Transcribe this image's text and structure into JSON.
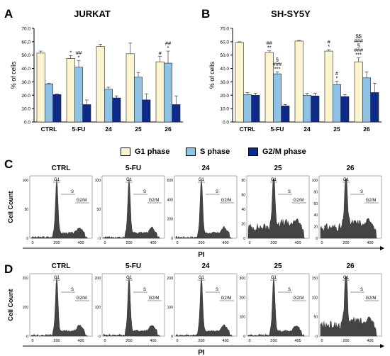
{
  "panels": {
    "A": {
      "letter": "A"
    },
    "B": {
      "letter": "B"
    },
    "C": {
      "letter": "C"
    },
    "D": {
      "letter": "D"
    }
  },
  "legend": {
    "items": [
      {
        "label": "G1 phase",
        "color": "#FDF5D0"
      },
      {
        "label": "S phase",
        "color": "#8EC3E6"
      },
      {
        "label": "G2/M phase",
        "color": "#0B2A8A"
      }
    ]
  },
  "histograms": {
    "ylabel": "Cell Count",
    "xlabel": "PI",
    "gate_labels": {
      "g1": "G1",
      "s": "S",
      "g2m": "G2/M"
    },
    "xticks": [
      "0",
      "200",
      "400"
    ],
    "rows": [
      {
        "panels": [
          {
            "label": "CTRL",
            "yticks": [
              "0",
              "50",
              "100"
            ]
          },
          {
            "label": "5-FU",
            "yticks": [
              "0",
              "50",
              "100"
            ]
          },
          {
            "label": "24",
            "yticks": [
              "0",
              "200",
              "400",
              "600"
            ]
          },
          {
            "label": "25",
            "yticks": [
              "0",
              "20",
              "40",
              "60",
              "80"
            ]
          },
          {
            "label": "26",
            "yticks": [
              "0",
              "20",
              "40",
              "60",
              "80",
              "100"
            ]
          }
        ]
      },
      {
        "panels": [
          {
            "label": "CTRL",
            "yticks": [
              "0",
              "100",
              "200"
            ]
          },
          {
            "label": "5-FU",
            "yticks": [
              "0",
              "100",
              "200"
            ]
          },
          {
            "label": "24",
            "yticks": [
              "0",
              "100",
              "200"
            ]
          },
          {
            "label": "25",
            "yticks": [
              "0",
              "100",
              "200",
              "300"
            ]
          },
          {
            "label": "26",
            "yticks": [
              "0",
              "50",
              "100",
              "150"
            ]
          }
        ]
      }
    ]
  },
  "chart_data": [
    {
      "type": "bar",
      "title": "JURKAT",
      "ylabel": "% of cells",
      "categories": [
        "CTRL",
        "5-FU",
        "24",
        "25",
        "26"
      ],
      "ylim": [
        0,
        70
      ],
      "yticks": [
        "0.0",
        "10.0",
        "20.0",
        "30.0",
        "40.0",
        "50.0",
        "60.0",
        "70.0"
      ],
      "grid": false,
      "series": [
        {
          "name": "G1 phase",
          "color": "#FDF5D0",
          "values": [
            51.5,
            47.5,
            56.5,
            51,
            45
          ],
          "errors": [
            1.5,
            2,
            1.5,
            8,
            4
          ]
        },
        {
          "name": "S phase",
          "color": "#8EC3E6",
          "values": [
            28.5,
            41,
            24.5,
            33.5,
            44
          ],
          "errors": [
            0.5,
            5,
            1.5,
            3.5,
            9
          ]
        },
        {
          "name": "G2/M phase",
          "color": "#0B2A8A",
          "values": [
            20.5,
            13,
            18,
            16.5,
            13
          ],
          "errors": [
            0.5,
            3.5,
            1.5,
            4.5,
            6.5
          ]
        }
      ],
      "annotations": [
        {
          "cat": 1,
          "series": 0,
          "text": "*"
        },
        {
          "cat": 1,
          "series": 1,
          "text": "##\n*"
        },
        {
          "cat": 4,
          "series": 0,
          "text": "#"
        },
        {
          "cat": 4,
          "series": 1,
          "text": "##\n*"
        }
      ]
    },
    {
      "type": "bar",
      "title": "SH-SY5Y",
      "ylabel": "% of cells",
      "categories": [
        "CTRL",
        "5-FU",
        "24",
        "25",
        "26"
      ],
      "ylim": [
        0,
        70
      ],
      "yticks": [
        "0.0",
        "10.0",
        "20.0",
        "30.0",
        "40.0",
        "50.0",
        "60.0",
        "70.0"
      ],
      "grid": false,
      "series": [
        {
          "name": "G1 phase",
          "color": "#FDF5D0",
          "values": [
            59.5,
            52,
            60.5,
            53,
            45
          ],
          "errors": [
            0.5,
            1.2,
            0.5,
            1,
            3
          ]
        },
        {
          "name": "S phase",
          "color": "#8EC3E6",
          "values": [
            20.5,
            36,
            20,
            28,
            33
          ],
          "errors": [
            1.5,
            1.5,
            1.5,
            2.5,
            4.5
          ]
        },
        {
          "name": "G2/M phase",
          "color": "#0B2A8A",
          "values": [
            20,
            12,
            19.5,
            19,
            22
          ],
          "errors": [
            1.5,
            1,
            2,
            1.5,
            7
          ]
        }
      ],
      "annotations": [
        {
          "cat": 1,
          "series": 0,
          "text": "##\n**"
        },
        {
          "cat": 1,
          "series": 1,
          "text": "§\n###\n***"
        },
        {
          "cat": 3,
          "series": 0,
          "text": "#\n*"
        },
        {
          "cat": 3,
          "series": 1,
          "text": "#\n*"
        },
        {
          "cat": 4,
          "series": 0,
          "text": "$$\n###\n§\n###\n***"
        },
        {
          "cat": 4,
          "series": 1,
          "text": ""
        }
      ]
    }
  ]
}
